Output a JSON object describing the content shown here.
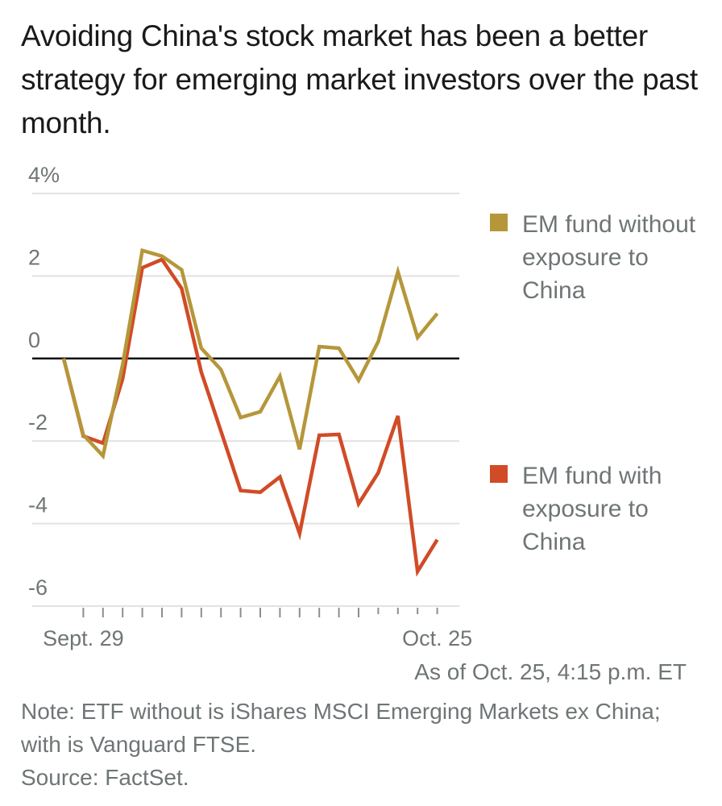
{
  "title": "Avoiding China's stock market has been a better strategy for emerging market investors over the past month.",
  "chart_data": {
    "type": "line",
    "title": "Avoiding China's stock market has been a better strategy for emerging market investors over the past month.",
    "xlabel": "",
    "ylabel": "",
    "ylim": [
      -6,
      4
    ],
    "yticks": [
      4,
      2,
      0,
      -2,
      -4,
      -6
    ],
    "ytick_labels": [
      "4%",
      "2",
      "0",
      "-2",
      "-4",
      "-6"
    ],
    "x_tick_count": 19,
    "x_labels": [
      {
        "label": "Sept. 29",
        "index": 1
      },
      {
        "label": "Oct. 25",
        "index": 19
      }
    ],
    "grid": true,
    "legend_position": "right",
    "series": [
      {
        "name": "EM fund without exposure to China",
        "color": "#b5973a",
        "values": [
          0,
          -1.85,
          -2.36,
          -0.15,
          2.62,
          2.48,
          2.15,
          0.25,
          -0.27,
          -1.43,
          -1.29,
          -0.43,
          -2.2,
          0.29,
          0.25,
          -0.53,
          0.41,
          2.1,
          0.51,
          1.09
        ]
      },
      {
        "name": "EM fund with exposure to China",
        "color": "#d14b27",
        "values": [
          0,
          -1.88,
          -2.05,
          -0.49,
          2.2,
          2.4,
          1.7,
          -0.33,
          -1.76,
          -3.2,
          -3.24,
          -2.87,
          -4.24,
          -1.86,
          -1.84,
          -3.52,
          -2.77,
          -1.39,
          -5.16,
          -4.39
        ]
      }
    ]
  },
  "legend": [
    {
      "label": "EM fund without exposure to China",
      "color": "#b5973a"
    },
    {
      "label": "EM fund with exposure to China",
      "color": "#d14b27"
    }
  ],
  "as_of": "As of Oct. 25, 4:15 p.m. ET",
  "note": "Note: ETF without is iShares MSCI Emerging Markets ex China; with is Vanguard FTSE.",
  "source": "Source: FactSet."
}
